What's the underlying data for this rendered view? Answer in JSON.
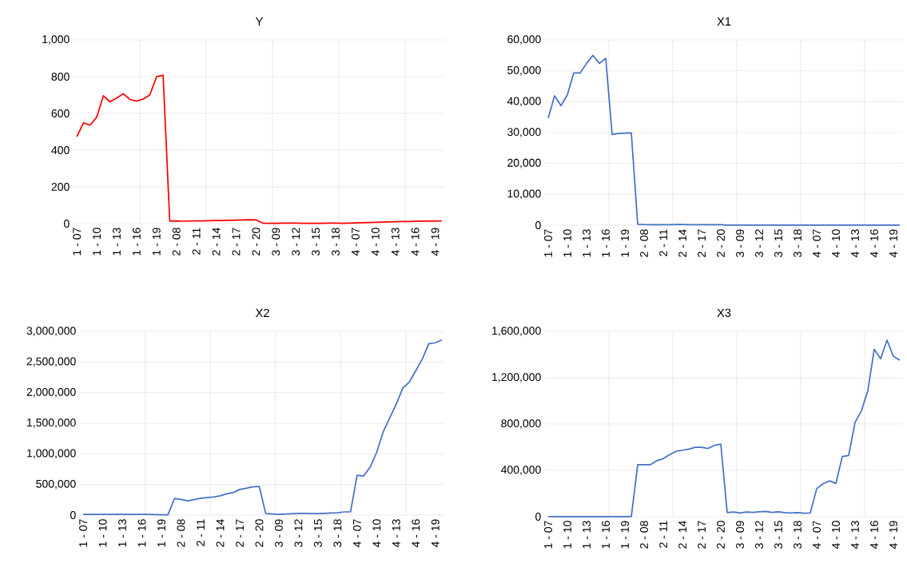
{
  "chart_data": [
    {
      "type": "line",
      "title": "Y",
      "grid": true,
      "marker": "none",
      "line_style": "solid",
      "categories": [
        "1 - 07",
        null,
        null,
        "1 - 10",
        null,
        null,
        "1 - 13",
        null,
        null,
        "1 - 16",
        null,
        null,
        "1 - 19",
        null,
        null,
        "2 - 08",
        null,
        null,
        "2 - 11",
        null,
        null,
        "2 - 14",
        null,
        null,
        "2 - 17",
        null,
        null,
        "2 - 20",
        null,
        null,
        "3 - 09",
        null,
        null,
        "3 - 12",
        null,
        null,
        "3 - 15",
        null,
        null,
        "3 - 18",
        null,
        null,
        "4 - 07",
        null,
        null,
        "4 - 10",
        null,
        null,
        "4 - 13",
        null,
        null,
        "4 - 16",
        null,
        null,
        "4 - 19",
        null
      ],
      "series": [
        {
          "color": "#ff0000",
          "values": [
            473,
            548,
            536,
            580,
            696,
            663,
            684,
            707,
            676,
            667,
            678,
            700,
            799,
            808,
            14,
            15,
            13,
            14,
            15,
            15,
            16,
            17,
            17,
            18,
            19,
            20,
            21,
            20,
            3,
            2,
            2,
            3,
            3,
            3,
            2,
            2,
            2,
            2,
            3,
            3,
            2,
            3,
            4,
            5,
            6,
            7,
            8,
            9,
            10,
            11,
            11,
            12,
            13,
            14,
            14,
            15
          ]
        }
      ],
      "ylim": [
        0,
        1000
      ],
      "yticks": [
        0,
        200,
        400,
        600,
        800,
        {
          "value": 1000,
          "label": "1,000"
        }
      ]
    },
    {
      "type": "line",
      "title": "X1",
      "grid": true,
      "marker": "none",
      "line_style": "solid",
      "categories": [
        "1 - 07",
        null,
        null,
        "1 - 10",
        null,
        null,
        "1 - 13",
        null,
        null,
        "1 - 16",
        null,
        null,
        "1 - 19",
        null,
        null,
        "2 - 08",
        null,
        null,
        "2 - 11",
        null,
        null,
        "2 - 14",
        null,
        null,
        "2 - 17",
        null,
        null,
        "2 - 20",
        null,
        null,
        "3 - 09",
        null,
        null,
        "3 - 12",
        null,
        null,
        "3 - 15",
        null,
        null,
        "3 - 18",
        null,
        null,
        "4 - 07",
        null,
        null,
        "4 - 10",
        null,
        null,
        "4 - 13",
        null,
        null,
        "4 - 16",
        null,
        null,
        "4 - 19",
        null
      ],
      "series": [
        {
          "color": "#4472c4",
          "values": [
            34700,
            41900,
            38700,
            42200,
            49300,
            49300,
            52400,
            55000,
            52400,
            54000,
            29400,
            29700,
            29800,
            29900,
            300,
            200,
            150,
            150,
            150,
            150,
            200,
            200,
            150,
            150,
            150,
            150,
            150,
            150,
            50,
            50,
            50,
            50,
            50,
            50,
            50,
            50,
            50,
            50,
            50,
            50,
            50,
            50,
            50,
            50,
            50,
            50,
            50,
            50,
            50,
            50,
            50,
            50,
            50,
            50,
            50,
            50
          ]
        }
      ],
      "ylim": [
        0,
        60000
      ],
      "yticks": [
        0,
        {
          "value": 10000,
          "label": "10,000"
        },
        {
          "value": 20000,
          "label": "20,000"
        },
        {
          "value": 30000,
          "label": "30,000"
        },
        {
          "value": 40000,
          "label": "40,000"
        },
        {
          "value": 50000,
          "label": "50,000"
        },
        {
          "value": 60000,
          "label": "60,000"
        }
      ]
    },
    {
      "type": "line",
      "title": "X2",
      "grid": true,
      "marker": "none",
      "line_style": "solid",
      "categories": [
        "1 - 07",
        null,
        null,
        "1 - 10",
        null,
        null,
        "1 - 13",
        null,
        null,
        "1 - 16",
        null,
        null,
        "1 - 19",
        null,
        null,
        "2 - 08",
        null,
        null,
        "2 - 11",
        null,
        null,
        "2 - 14",
        null,
        null,
        "2 - 17",
        null,
        null,
        "2 - 20",
        null,
        null,
        "3 - 09",
        null,
        null,
        "3 - 12",
        null,
        null,
        "3 - 15",
        null,
        null,
        "3 - 18",
        null,
        null,
        "4 - 07",
        null,
        null,
        "4 - 10",
        null,
        null,
        "4 - 13",
        null,
        null,
        "4 - 16",
        null,
        null,
        "4 - 19",
        null
      ],
      "series": [
        {
          "color": "#4472c4",
          "values": [
            12000,
            11000,
            10000,
            10000,
            10000,
            10000,
            10000,
            12000,
            12000,
            12000,
            12000,
            8000,
            5000,
            5000,
            271000,
            257000,
            233000,
            252000,
            276000,
            286000,
            295000,
            314000,
            348000,
            367000,
            419000,
            438000,
            462000,
            467000,
            24000,
            19000,
            10000,
            19000,
            24000,
            29000,
            29000,
            24000,
            24000,
            29000,
            33000,
            38000,
            52000,
            52000,
            650000,
            638000,
            781000,
            1024000,
            1357000,
            1586000,
            1810000,
            2071000,
            2171000,
            2357000,
            2548000,
            2800000,
            2814000,
            2862000
          ]
        }
      ],
      "ylim": [
        0,
        3000000
      ],
      "yticks": [
        0,
        {
          "value": 500000,
          "label": "500,000"
        },
        {
          "value": 1000000,
          "label": "1,000,000"
        },
        {
          "value": 1500000,
          "label": "1,500,000"
        },
        {
          "value": 2000000,
          "label": "2,000,000"
        },
        {
          "value": 2500000,
          "label": "2,500,000"
        },
        {
          "value": 3000000,
          "label": "3,000,000"
        }
      ]
    },
    {
      "type": "line",
      "title": "X3",
      "grid": true,
      "marker": "none",
      "line_style": "solid",
      "categories": [
        "1 - 07",
        null,
        null,
        "1 - 10",
        null,
        null,
        "1 - 13",
        null,
        null,
        "1 - 16",
        null,
        null,
        "1 - 19",
        null,
        null,
        "2 - 08",
        null,
        null,
        "2 - 11",
        null,
        null,
        "2 - 14",
        null,
        null,
        "2 - 17",
        null,
        null,
        "2 - 20",
        null,
        null,
        "3 - 09",
        null,
        null,
        "3 - 12",
        null,
        null,
        "3 - 15",
        null,
        null,
        "3 - 18",
        null,
        null,
        "4 - 07",
        null,
        null,
        "4 - 10",
        null,
        null,
        "4 - 13",
        null,
        null,
        "4 - 16",
        null,
        null,
        "4 - 19",
        null
      ],
      "series": [
        {
          "color": "#4472c4",
          "values": [
            0,
            0,
            0,
            0,
            0,
            0,
            0,
            0,
            0,
            0,
            0,
            0,
            0,
            0,
            449000,
            449000,
            449000,
            484000,
            501000,
            536000,
            564000,
            574000,
            584000,
            599000,
            599000,
            589000,
            616000,
            626000,
            35000,
            40000,
            32000,
            40000,
            37000,
            42000,
            45000,
            37000,
            42000,
            35000,
            32000,
            35000,
            30000,
            32000,
            242000,
            284000,
            309000,
            287000,
            519000,
            529000,
            815000,
            915000,
            1090000,
            1444000,
            1364000,
            1524000,
            1384000,
            1352000
          ]
        }
      ],
      "ylim": [
        0,
        1600000
      ],
      "yticks": [
        0,
        {
          "value": 400000,
          "label": "400,000"
        },
        {
          "value": 800000,
          "label": "800,000"
        },
        {
          "value": 1200000,
          "label": "1,200,000"
        },
        {
          "value": 1600000,
          "label": "1,600,000"
        }
      ]
    }
  ]
}
